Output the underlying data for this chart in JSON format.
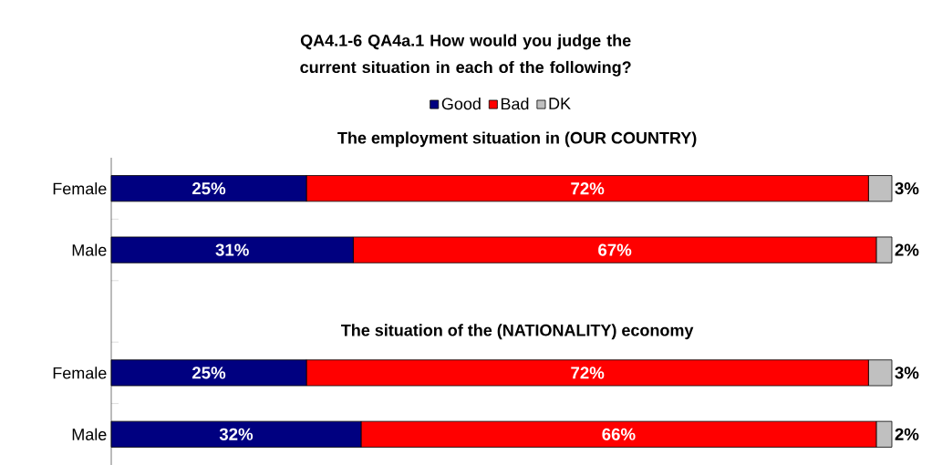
{
  "chart_data": {
    "type": "bar",
    "orientation": "horizontal",
    "stacked": true,
    "title": "QA4.1-6 QA4a.1 How would you judge the current situation in each of the following?",
    "categories": [
      "Female",
      "Male",
      null,
      "Female",
      "Male"
    ],
    "xlim": [
      0,
      100
    ],
    "legend": "top",
    "annotations": [
      "The employment situation in (OUR COUNTRY)",
      "The situation of the (NATIONALITY) economy"
    ],
    "series": [
      {
        "name": "Good",
        "color": "#000080",
        "values": [
          25,
          31,
          null,
          25,
          32
        ],
        "value_labels": [
          "25%",
          "31%",
          null,
          "25%",
          "32%"
        ]
      },
      {
        "name": "Bad",
        "color": "#ff0000",
        "values": [
          72,
          67,
          null,
          72,
          66
        ],
        "value_labels": [
          "72%",
          "67%",
          null,
          "72%",
          "66%"
        ]
      },
      {
        "name": "DK",
        "color": "#c0c0c0",
        "values": [
          3,
          2,
          null,
          3,
          2
        ],
        "value_labels": [
          "3%",
          "2%",
          null,
          "3%",
          "2%"
        ]
      }
    ]
  }
}
